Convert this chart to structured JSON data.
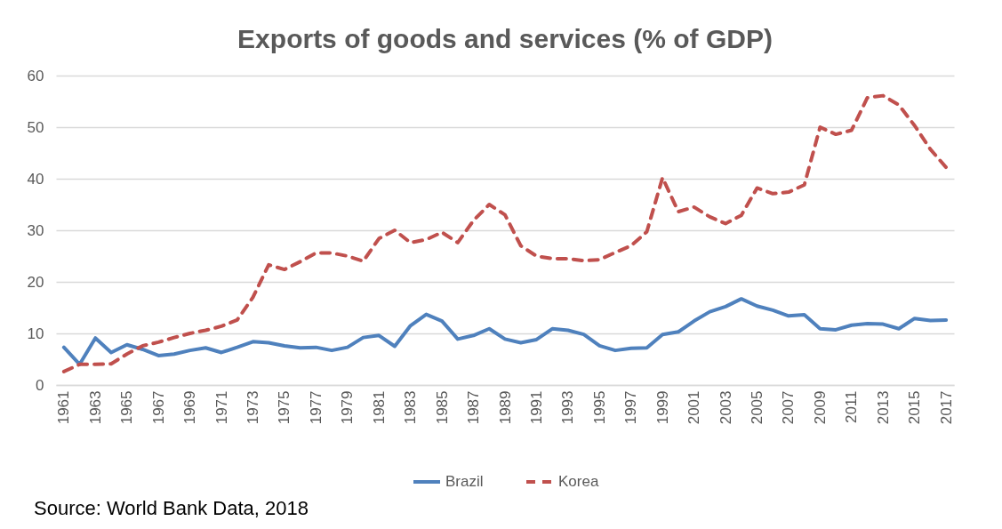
{
  "chart_data": {
    "type": "line",
    "title": "Exports of goods and services (% of GDP)",
    "categories": [
      "1961",
      null,
      "1963",
      null,
      "1965",
      null,
      "1967",
      null,
      "1969",
      null,
      "1971",
      null,
      "1973",
      null,
      "1975",
      null,
      "1977",
      null,
      "1979",
      null,
      "1981",
      null,
      "1983",
      null,
      "1985",
      null,
      "1987",
      null,
      "1989",
      null,
      "1991",
      null,
      "1993",
      null,
      "1995",
      null,
      "1997",
      null,
      "1999",
      null,
      "2001",
      null,
      "2003",
      null,
      "2005",
      null,
      "2007",
      null,
      "2009",
      null,
      "2011",
      null,
      "2013",
      null,
      "2015",
      null,
      "2017"
    ],
    "series": [
      {
        "name": "Brazil",
        "color": "#4f81bd",
        "line_style": "solid",
        "values": [
          7.3,
          4.0,
          9.1,
          6.3,
          7.8,
          6.9,
          5.7,
          6.0,
          6.7,
          7.2,
          6.3,
          7.3,
          8.4,
          8.2,
          7.6,
          7.2,
          7.3,
          6.7,
          7.3,
          9.2,
          9.6,
          7.5,
          11.5,
          13.7,
          12.4,
          8.9,
          9.6,
          10.9,
          8.9,
          8.2,
          8.8,
          10.9,
          10.6,
          9.8,
          7.6,
          6.7,
          7.1,
          7.2,
          9.8,
          10.3,
          12.4,
          14.2,
          15.2,
          16.7,
          15.3,
          14.5,
          13.4,
          13.6,
          10.9,
          10.7,
          11.6,
          11.9,
          11.8,
          10.9,
          12.9,
          12.5,
          12.6
        ]
      },
      {
        "name": "Korea",
        "color": "#c0504d",
        "line_style": "dashed",
        "values": [
          2.6,
          4.0,
          4.0,
          4.1,
          6.0,
          7.6,
          8.3,
          9.2,
          10.0,
          10.6,
          11.4,
          12.6,
          17.0,
          23.3,
          22.4,
          23.9,
          25.6,
          25.6,
          25.0,
          24.0,
          28.4,
          30.0,
          27.6,
          28.2,
          29.6,
          27.6,
          31.9,
          35.0,
          33.0,
          27.0,
          25.0,
          24.5,
          24.5,
          24.1,
          24.3,
          25.7,
          27.0,
          29.7,
          40.2,
          33.6,
          34.5,
          32.6,
          31.3,
          32.9,
          38.2,
          37.1,
          37.4,
          38.8,
          50.0,
          48.6,
          49.4,
          55.7,
          56.1,
          54.3,
          50.3,
          45.7,
          42.2
        ]
      }
    ],
    "ylim": [
      0,
      60
    ],
    "yticks": [
      0,
      10,
      20,
      30,
      40,
      50,
      60
    ],
    "grid": "y",
    "legend": "bottom",
    "annotations": [
      "Source: World Bank Data, 2018"
    ]
  }
}
